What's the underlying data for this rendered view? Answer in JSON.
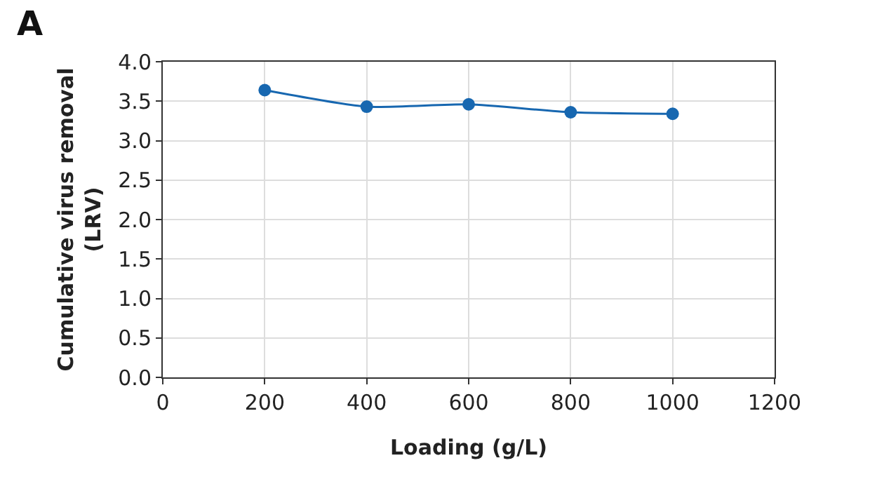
{
  "chart_data": {
    "type": "line",
    "annotations": [
      "A"
    ],
    "xlabel": "Loading (g/L)",
    "ylabel": "Cumulative virus removal\n(LRV)",
    "x": [
      200,
      400,
      600,
      800,
      1000
    ],
    "series": [
      {
        "color": "#1767b0",
        "values": [
          3.64,
          3.43,
          3.46,
          3.36,
          3.34
        ]
      }
    ],
    "xlim": [
      0,
      1200
    ],
    "xticks": [
      0,
      200,
      400,
      600,
      800,
      1000,
      1200
    ],
    "ylim": [
      0,
      4
    ],
    "yticks": [
      {
        "value": 0,
        "label": "0.0"
      },
      {
        "value": 0.5,
        "label": "0.5"
      },
      {
        "value": 1,
        "label": "1.0"
      },
      {
        "value": 1.5,
        "label": "1.5"
      },
      {
        "value": 2,
        "label": "2.0"
      },
      {
        "value": 2.5,
        "label": "2.5"
      },
      {
        "value": 3,
        "label": "3.0"
      },
      {
        "value": 3.5,
        "label": "3.5"
      },
      {
        "value": 4,
        "label": "4.0"
      }
    ],
    "grid": true,
    "marker": "circle",
    "line_style": "solid"
  }
}
